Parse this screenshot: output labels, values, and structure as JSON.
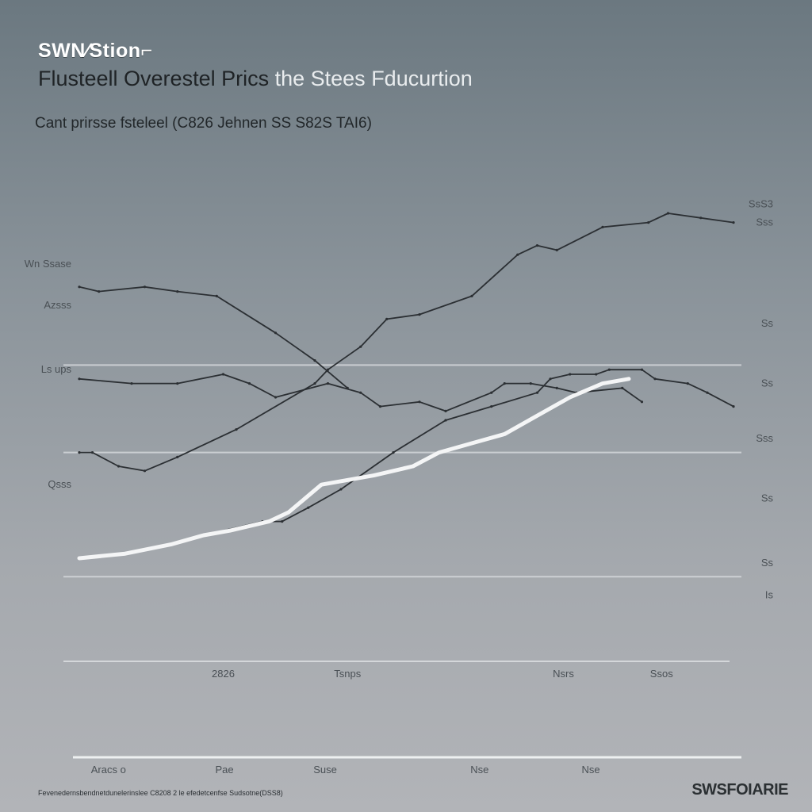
{
  "header": {
    "brand": "SWN∕Stion⌐",
    "title_main": "Flusteell Overestel Prics",
    "title_tail": "the Stees Fducurtion",
    "subtitle": "Cant prirsse fsteleel (C826 Jehnen SS S82S TAI6)"
  },
  "footer": {
    "note": "Fevenedernsbendnetdunelerinslee C8208 2 le efedetcenfse Sudsotne(DSS8)",
    "logo": "SWSFOIARIE"
  },
  "colors": {
    "series_dark": "#2b2f33",
    "series_white": "#f4f5f6",
    "grid": "#d4d7da"
  },
  "chart_data": {
    "type": "line",
    "title": "Flusteell Overestel Prics the Stees Fducurtion",
    "subtitle": "Cant prirsse fsteleel (C826 Jehnen SS S82S TAI6)",
    "xlabel": "",
    "ylabel": "",
    "xlim": [
      0,
      100
    ],
    "ylim": [
      0,
      100
    ],
    "grid": true,
    "gridlines_y": [
      16,
      43,
      62
    ],
    "x_ticks": [
      {
        "label": "2826",
        "x": 22
      },
      {
        "label": "Tsnps",
        "x": 41
      },
      {
        "label": "Nsrs",
        "x": 74
      },
      {
        "label": "Ssos",
        "x": 89
      }
    ],
    "x_ticks_bottom": [
      {
        "label": "Aracs o",
        "x": 3
      },
      {
        "label": "Pae",
        "x": 22
      },
      {
        "label": "Suse",
        "x": 37
      },
      {
        "label": "Nse",
        "x": 61
      },
      {
        "label": "Nse",
        "x": 78
      }
    ],
    "y_ticks_left": [
      {
        "label": "Wn Ssase",
        "y": 84
      },
      {
        "label": "Azsss",
        "y": 75
      },
      {
        "label": "Ls ups",
        "y": 61
      },
      {
        "label": "Qsss",
        "y": 36
      }
    ],
    "y_ticks_right": [
      {
        "label": "SsS3",
        "y": 97
      },
      {
        "label": "Sss",
        "y": 93
      },
      {
        "label": "Ss",
        "y": 71
      },
      {
        "label": "Ss",
        "y": 58
      },
      {
        "label": "Sss",
        "y": 46
      },
      {
        "label": "Ss",
        "y": 33
      },
      {
        "label": "Ss",
        "y": 19
      },
      {
        "label": "Is",
        "y": 12
      }
    ],
    "series": [
      {
        "color": "dark",
        "x": [
          0,
          2,
          6,
          10,
          15,
          24,
          36,
          38,
          43,
          47,
          52,
          60,
          67,
          70,
          73,
          80,
          87,
          90,
          95,
          100
        ],
        "y": [
          43,
          43,
          40,
          39,
          42,
          48,
          58,
          61,
          66,
          72,
          73,
          77,
          86,
          88,
          87,
          92,
          93,
          95,
          94,
          93
        ]
      },
      {
        "color": "dark",
        "x": [
          0,
          3,
          10,
          15,
          21,
          30,
          36,
          41
        ],
        "y": [
          79,
          78,
          79,
          78,
          77,
          69,
          63,
          57
        ]
      },
      {
        "color": "dark",
        "x": [
          0,
          8,
          15,
          22,
          26,
          30,
          38,
          43,
          46,
          52,
          56,
          63,
          65,
          69,
          73,
          76,
          83,
          86
        ],
        "y": [
          59,
          58,
          58,
          60,
          58,
          55,
          58,
          56,
          53,
          54,
          52,
          56,
          58,
          58,
          57,
          56,
          57,
          54
        ]
      },
      {
        "color": "dark",
        "x": [
          19,
          28,
          31,
          35,
          40,
          48,
          56,
          63,
          70,
          72,
          75,
          79,
          81,
          86,
          88,
          93,
          96,
          100
        ],
        "y": [
          25,
          28,
          28,
          31,
          35,
          43,
          50,
          53,
          56,
          59,
          60,
          60,
          61,
          61,
          59,
          58,
          56,
          53
        ]
      },
      {
        "color": "white",
        "x": [
          0,
          7,
          14,
          19,
          23,
          29,
          32,
          37,
          45,
          51,
          55,
          60,
          65,
          70,
          75,
          80,
          84
        ],
        "y": [
          20,
          21,
          23,
          25,
          26,
          28,
          30,
          36,
          38,
          40,
          43,
          45,
          47,
          51,
          55,
          58,
          59
        ]
      }
    ]
  }
}
